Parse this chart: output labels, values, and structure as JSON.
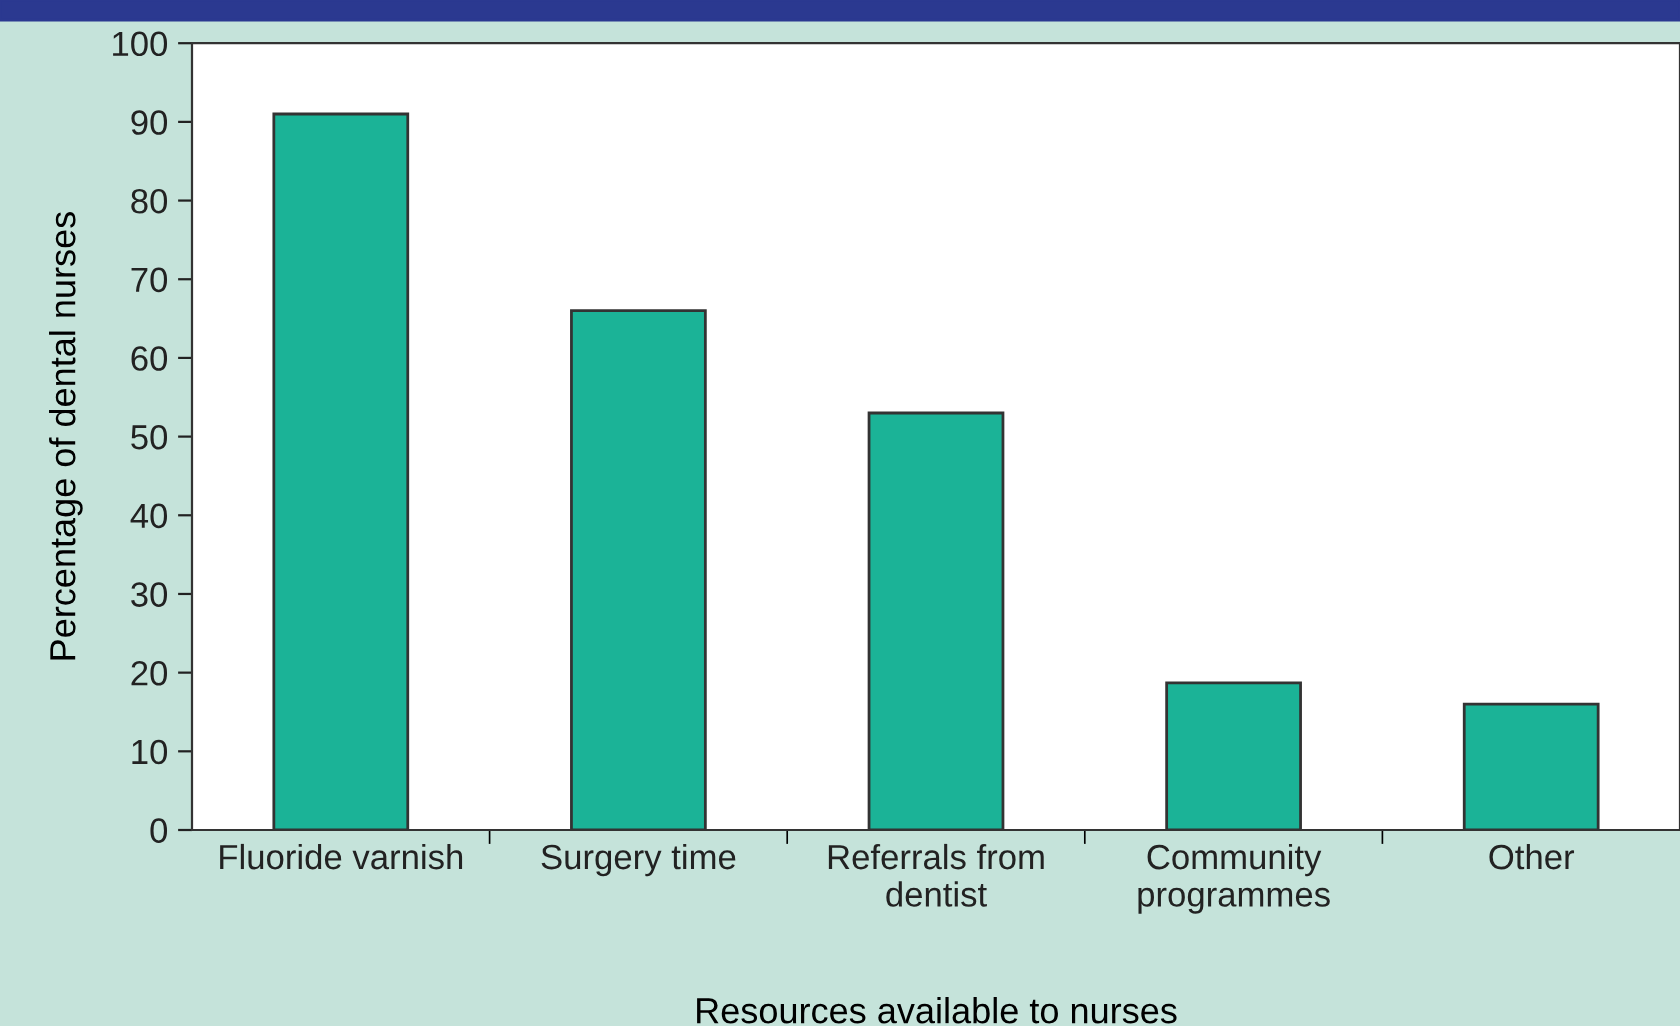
{
  "chart_data": {
    "type": "bar",
    "xlabel": "Resources available to nurses",
    "ylabel": "Percentage of dental nurses",
    "categories": [
      "Fluoride varnish",
      "Surgery time",
      "Referrals from\ndentist",
      "Community\nprogrammes",
      "Other"
    ],
    "values": [
      91,
      66,
      53,
      18.7,
      16
    ],
    "color": "#1bb397",
    "ylim": [
      0,
      100
    ],
    "yticks": [
      0,
      10,
      20,
      30,
      40,
      50,
      60,
      70,
      80,
      90,
      100
    ],
    "grid": false
  }
}
